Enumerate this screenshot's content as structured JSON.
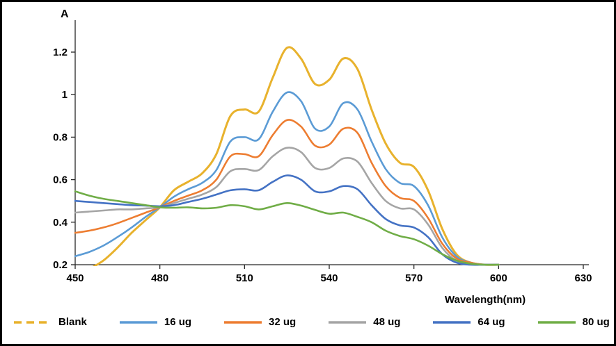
{
  "frame": {
    "background": "#ffffff",
    "border_color": "#000000",
    "axis_color": "#262626",
    "text_color": "#000000"
  },
  "chart_data": {
    "type": "line",
    "title": "",
    "xlabel": "Wavelength(nm)",
    "ylabel": "A",
    "x_range": [
      450,
      630
    ],
    "y_range": [
      0.2,
      1.2
    ],
    "x_ticks": [
      450,
      480,
      510,
      540,
      570,
      600,
      630
    ],
    "y_tick_values": [
      0.2,
      0.4,
      0.6,
      0.8,
      1,
      1.2
    ],
    "y_ticks": [
      "0.2",
      "0.4",
      "0.6",
      "0.8",
      "1",
      "1.2"
    ],
    "grid": false,
    "legend_position": "bottom",
    "x": [
      450,
      455,
      460,
      465,
      470,
      475,
      480,
      485,
      490,
      495,
      500,
      505,
      510,
      515,
      520,
      525,
      530,
      535,
      540,
      545,
      550,
      555,
      560,
      565,
      570,
      575,
      580,
      585,
      590,
      595,
      600
    ],
    "series": [
      {
        "name": "Blank",
        "color": "#E8B22D",
        "legend_dashed": true,
        "line_width": 3,
        "values": [
          0.15,
          0.18,
          0.22,
          0.28,
          0.35,
          0.41,
          0.47,
          0.55,
          0.59,
          0.63,
          0.72,
          0.9,
          0.93,
          0.92,
          1.08,
          1.22,
          1.17,
          1.05,
          1.07,
          1.17,
          1.12,
          0.93,
          0.77,
          0.68,
          0.66,
          0.55,
          0.37,
          0.25,
          0.21,
          0.2,
          0.2
        ]
      },
      {
        "name": "16 ug",
        "color": "#5B9BD5",
        "legend_dashed": false,
        "line_width": 2.6,
        "values": [
          0.24,
          0.26,
          0.29,
          0.33,
          0.375,
          0.425,
          0.47,
          0.52,
          0.555,
          0.585,
          0.645,
          0.78,
          0.8,
          0.79,
          0.92,
          1.01,
          0.97,
          0.84,
          0.85,
          0.96,
          0.93,
          0.78,
          0.65,
          0.585,
          0.57,
          0.48,
          0.33,
          0.24,
          0.21,
          0.2,
          0.2
        ]
      },
      {
        "name": "32 ug",
        "color": "#ED7D31",
        "legend_dashed": false,
        "line_width": 2.6,
        "values": [
          0.35,
          0.36,
          0.375,
          0.395,
          0.42,
          0.445,
          0.47,
          0.5,
          0.525,
          0.55,
          0.6,
          0.71,
          0.72,
          0.71,
          0.81,
          0.88,
          0.85,
          0.76,
          0.765,
          0.84,
          0.82,
          0.68,
          0.57,
          0.515,
          0.5,
          0.42,
          0.3,
          0.23,
          0.21,
          0.2,
          0.2
        ]
      },
      {
        "name": "48 ug",
        "color": "#A5A5A5",
        "legend_dashed": false,
        "line_width": 2.6,
        "values": [
          0.445,
          0.45,
          0.455,
          0.46,
          0.46,
          0.465,
          0.47,
          0.49,
          0.51,
          0.53,
          0.565,
          0.64,
          0.65,
          0.645,
          0.71,
          0.75,
          0.73,
          0.655,
          0.655,
          0.7,
          0.685,
          0.585,
          0.5,
          0.465,
          0.46,
          0.39,
          0.28,
          0.22,
          0.205,
          0.2,
          0.2
        ]
      },
      {
        "name": "64 ug",
        "color": "#4472C4",
        "legend_dashed": false,
        "line_width": 2.6,
        "values": [
          0.5,
          0.495,
          0.49,
          0.485,
          0.48,
          0.478,
          0.475,
          0.48,
          0.495,
          0.51,
          0.53,
          0.55,
          0.555,
          0.55,
          0.59,
          0.62,
          0.6,
          0.545,
          0.545,
          0.57,
          0.555,
          0.48,
          0.415,
          0.385,
          0.375,
          0.33,
          0.25,
          0.21,
          0.2,
          0.2,
          0.2
        ]
      },
      {
        "name": "80 ug",
        "color": "#70AD47",
        "legend_dashed": false,
        "line_width": 2.6,
        "values": [
          0.545,
          0.525,
          0.51,
          0.5,
          0.49,
          0.48,
          0.47,
          0.468,
          0.47,
          0.465,
          0.468,
          0.48,
          0.475,
          0.46,
          0.475,
          0.49,
          0.478,
          0.458,
          0.44,
          0.445,
          0.425,
          0.4,
          0.36,
          0.335,
          0.32,
          0.29,
          0.25,
          0.22,
          0.205,
          0.2,
          0.2
        ]
      }
    ]
  }
}
